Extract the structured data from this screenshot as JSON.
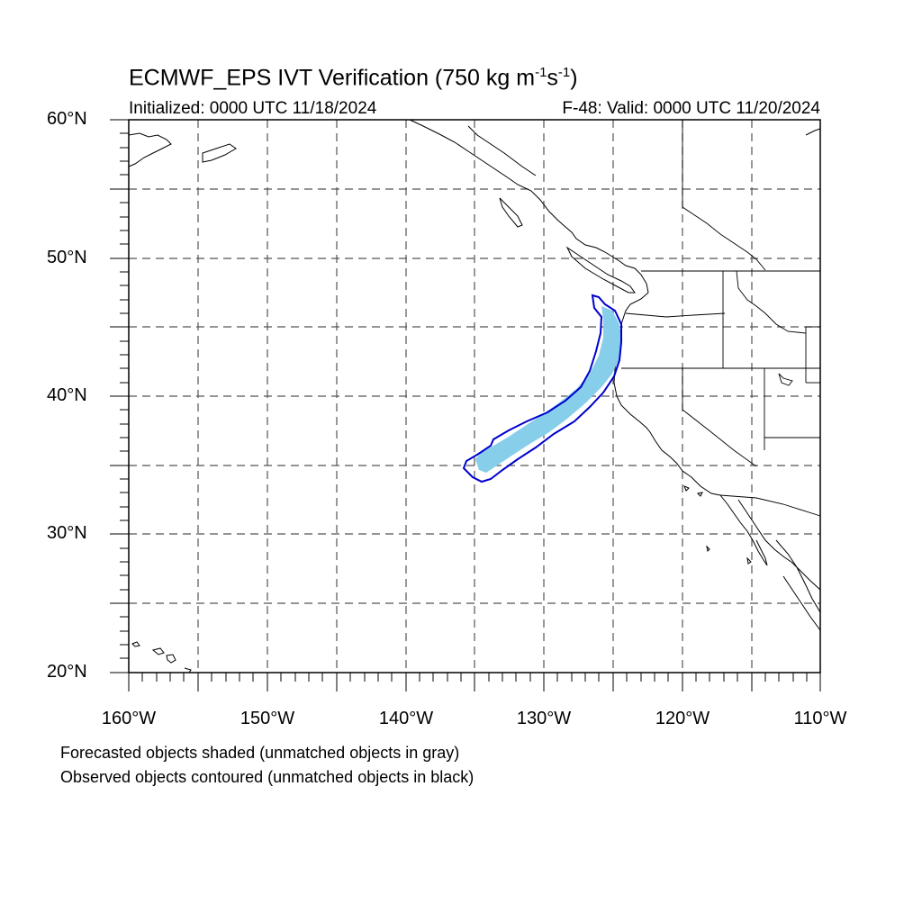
{
  "title": "ECMWF_EPS IVT Verification (750 kg m",
  "title_exp1": "-1",
  "title_mid": "s",
  "title_exp2": "-1",
  "title_end": ")",
  "initialized": "Initialized: 0000 UTC 11/18/2024",
  "valid": "F-48: Valid: 0000 UTC 11/20/2024",
  "lat_labels": [
    "60°N",
    "50°N",
    "40°N",
    "30°N",
    "20°N"
  ],
  "lon_labels": [
    "160°W",
    "150°W",
    "140°W",
    "130°W",
    "120°W",
    "110°W"
  ],
  "notes": {
    "line1": "Forecasted objects shaded (unmatched objects in gray)",
    "line2": "Observed objects contoured (unmatched objects in black)"
  },
  "colors": {
    "forecast_fill": "#87ceeb",
    "observed_contour": "#0000cd",
    "coastline": "#000000",
    "grid": "#555555"
  }
}
